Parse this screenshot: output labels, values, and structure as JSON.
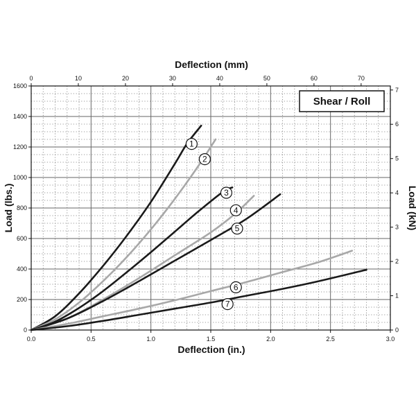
{
  "chart_data": {
    "type": "line",
    "title_box": "Shear / Roll",
    "xlabel_bottom": "Deflection (in.)",
    "xlabel_top": "Deflection (mm)",
    "ylabel_left": "Load (lbs.)",
    "ylabel_right": "Load (kN)",
    "xlim": [
      0,
      3.0
    ],
    "ylim": [
      0,
      1600
    ],
    "x2lim": [
      0,
      76.2
    ],
    "y2lim": [
      0,
      7.117
    ],
    "x_ticks": [
      "0.0",
      "0.5",
      "1.0",
      "1.5",
      "2.0",
      "2.5",
      "3.0"
    ],
    "x_tick_values": [
      0,
      0.5,
      1.0,
      1.5,
      2.0,
      2.5,
      3.0
    ],
    "y_ticks": [
      "0",
      "200",
      "400",
      "600",
      "800",
      "1000",
      "1200",
      "1400",
      "1600"
    ],
    "y_tick_values": [
      0,
      200,
      400,
      600,
      800,
      1000,
      1200,
      1400,
      1600
    ],
    "x2_ticks": [
      "0",
      "10",
      "20",
      "30",
      "40",
      "50",
      "60",
      "70"
    ],
    "x2_tick_values": [
      0,
      10,
      20,
      30,
      40,
      50,
      60,
      70
    ],
    "y2_ticks": [
      "0",
      "1",
      "2",
      "3",
      "4",
      "5",
      "6",
      "7"
    ],
    "y2_tick_values": [
      0,
      1,
      2,
      3,
      4,
      5,
      6,
      7
    ],
    "grid": true,
    "colors": {
      "black": "#1a1a1a",
      "gray": "#a8a8a8",
      "grid": "#777777"
    },
    "series": [
      {
        "name": "1",
        "color": "black",
        "x": [
          0,
          0.2,
          0.4,
          0.6,
          0.8,
          1.0,
          1.2,
          1.3,
          1.42
        ],
        "y": [
          0,
          90,
          240,
          420,
          620,
          840,
          1090,
          1220,
          1340
        ],
        "label_at": [
          1.34,
          1220
        ]
      },
      {
        "name": "2",
        "color": "gray",
        "x": [
          0,
          0.2,
          0.4,
          0.6,
          0.8,
          1.0,
          1.2,
          1.4,
          1.54
        ],
        "y": [
          0,
          70,
          180,
          320,
          480,
          660,
          860,
          1080,
          1250
        ],
        "label_at": [
          1.45,
          1120
        ]
      },
      {
        "name": "3",
        "color": "black",
        "x": [
          0,
          0.2,
          0.4,
          0.6,
          0.8,
          1.0,
          1.2,
          1.4,
          1.6,
          1.68
        ],
        "y": [
          0,
          55,
          145,
          255,
          380,
          510,
          645,
          780,
          905,
          935
        ],
        "label_at": [
          1.63,
          900
        ]
      },
      {
        "name": "4",
        "color": "gray",
        "x": [
          0,
          0.3,
          0.6,
          0.9,
          1.2,
          1.5,
          1.7,
          1.86
        ],
        "y": [
          0,
          75,
          200,
          340,
          490,
          640,
          760,
          880
        ],
        "label_at": [
          1.71,
          785
        ]
      },
      {
        "name": "5",
        "color": "black",
        "x": [
          0,
          0.3,
          0.6,
          0.9,
          1.2,
          1.5,
          1.8,
          2.08
        ],
        "y": [
          0,
          75,
          190,
          320,
          455,
          590,
          730,
          890
        ],
        "label_at": [
          1.72,
          665
        ]
      },
      {
        "name": "6",
        "color": "gray",
        "x": [
          0,
          0.3,
          0.6,
          0.9,
          1.2,
          1.5,
          1.8,
          2.1,
          2.4,
          2.68
        ],
        "y": [
          0,
          40,
          90,
          140,
          195,
          255,
          315,
          380,
          445,
          520
        ],
        "label_at": [
          1.71,
          280
        ]
      },
      {
        "name": "7",
        "color": "black",
        "x": [
          0,
          0.3,
          0.6,
          0.9,
          1.2,
          1.5,
          1.8,
          2.1,
          2.4,
          2.8
        ],
        "y": [
          0,
          25,
          60,
          100,
          140,
          180,
          225,
          270,
          320,
          395
        ],
        "label_at": [
          1.64,
          170
        ]
      }
    ]
  }
}
